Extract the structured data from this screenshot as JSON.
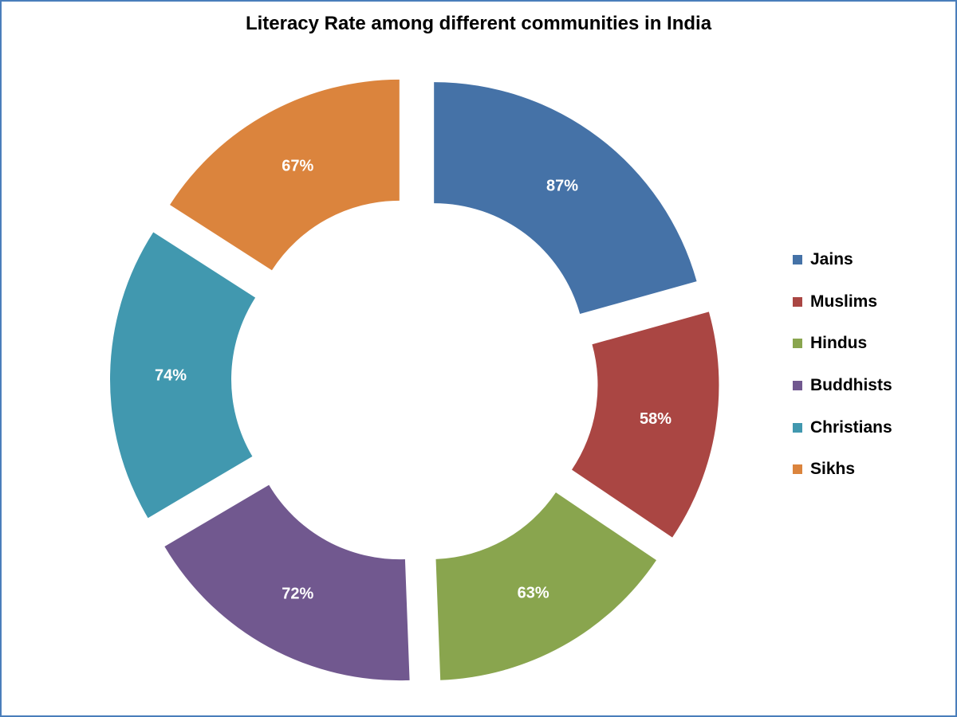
{
  "chart_data": {
    "type": "pie",
    "title": "Literacy Rate among different communities in India",
    "series": [
      {
        "name": "Jains",
        "value": 87,
        "label": "87%",
        "color": "#4572a7"
      },
      {
        "name": "Muslims",
        "value": 58,
        "label": "58%",
        "color": "#aa4643"
      },
      {
        "name": "Hindus",
        "value": 63,
        "label": "63%",
        "color": "#89a54e"
      },
      {
        "name": "Buddhists",
        "value": 72,
        "label": "72%",
        "color": "#71588f"
      },
      {
        "name": "Christians",
        "value": 74,
        "label": "74%",
        "color": "#4198af"
      },
      {
        "name": "Sikhs",
        "value": 67,
        "label": "67%",
        "color": "#db843d"
      }
    ],
    "legend_position": "right"
  }
}
